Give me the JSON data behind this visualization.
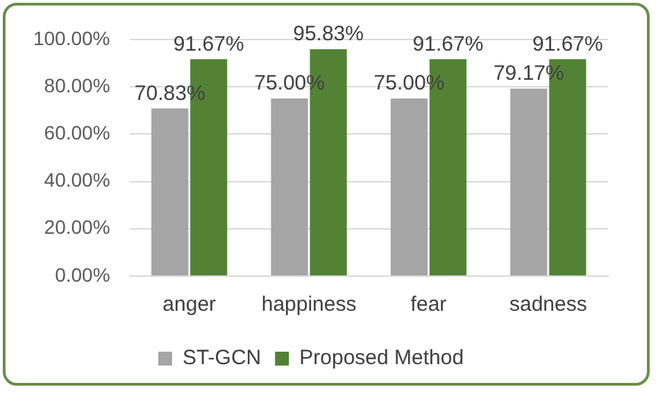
{
  "chart_data": {
    "type": "bar",
    "categories": [
      "anger",
      "happiness",
      "fear",
      "sadness"
    ],
    "series": [
      {
        "name": "ST-GCN",
        "color": "#a5a5a5",
        "values": [
          70.83,
          75.0,
          75.0,
          79.17
        ],
        "value_labels": [
          "70.83%",
          "75.00%",
          "75.00%",
          "79.17%"
        ]
      },
      {
        "name": "Proposed Method",
        "color": "#548235",
        "values": [
          91.67,
          95.83,
          91.67,
          91.67
        ],
        "value_labels": [
          "91.67%",
          "95.83%",
          "91.67%",
          "91.67%"
        ]
      }
    ],
    "ylim": [
      0,
      100
    ],
    "yticks": [
      {
        "value": 0,
        "label": "0.00%"
      },
      {
        "value": 20,
        "label": "20.00%"
      },
      {
        "value": 40,
        "label": "40.00%"
      },
      {
        "value": 60,
        "label": "60.00%"
      },
      {
        "value": 80,
        "label": "80.00%"
      },
      {
        "value": 100,
        "label": "100.00%"
      }
    ],
    "grid": "y",
    "legend": "bottom"
  }
}
